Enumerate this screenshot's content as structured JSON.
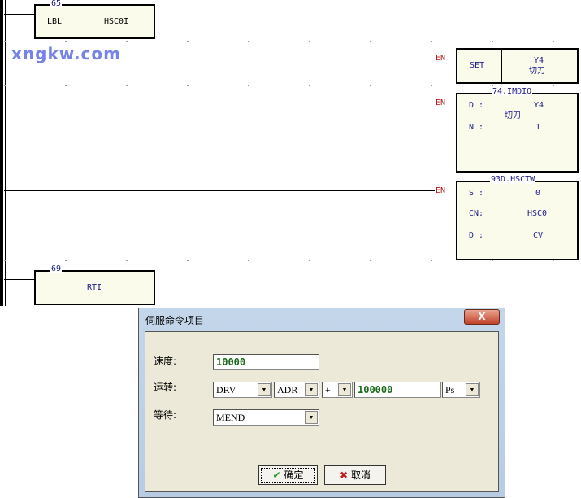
{
  "watermark": "xngkw.com",
  "ladder": {
    "block65": {
      "number": "65",
      "op": "LBL",
      "label": "HSC0I"
    },
    "set": {
      "en": "EN",
      "op": "SET",
      "operand": "Y4",
      "comment": "切刀"
    },
    "imdio": {
      "en": "EN",
      "title": "74.IMDIO",
      "d_label": "D :",
      "d_value": "Y4",
      "d_comment": "切刀",
      "n_label": "N :",
      "n_value": "1"
    },
    "hsctw": {
      "en": "EN",
      "title": "93D.HSCTW",
      "s_label": "S :",
      "s_value": "0",
      "cn_label": "CN:",
      "cn_value": "HSC0",
      "d_label": "D :",
      "d_value": "CV"
    },
    "block69": {
      "number": "69",
      "op": "RTI"
    }
  },
  "dialog": {
    "title": "伺服命令项目",
    "close": "X",
    "speed_label": "速度:",
    "speed_value": "10000",
    "run_label": "运转:",
    "run_cmd": "DRV",
    "run_mode": "ADR",
    "run_sign": "+",
    "run_value": "100000",
    "run_unit": "Ps",
    "wait_label": "等待:",
    "wait_value": "MEND",
    "ok": "确定",
    "cancel": "取消"
  }
}
